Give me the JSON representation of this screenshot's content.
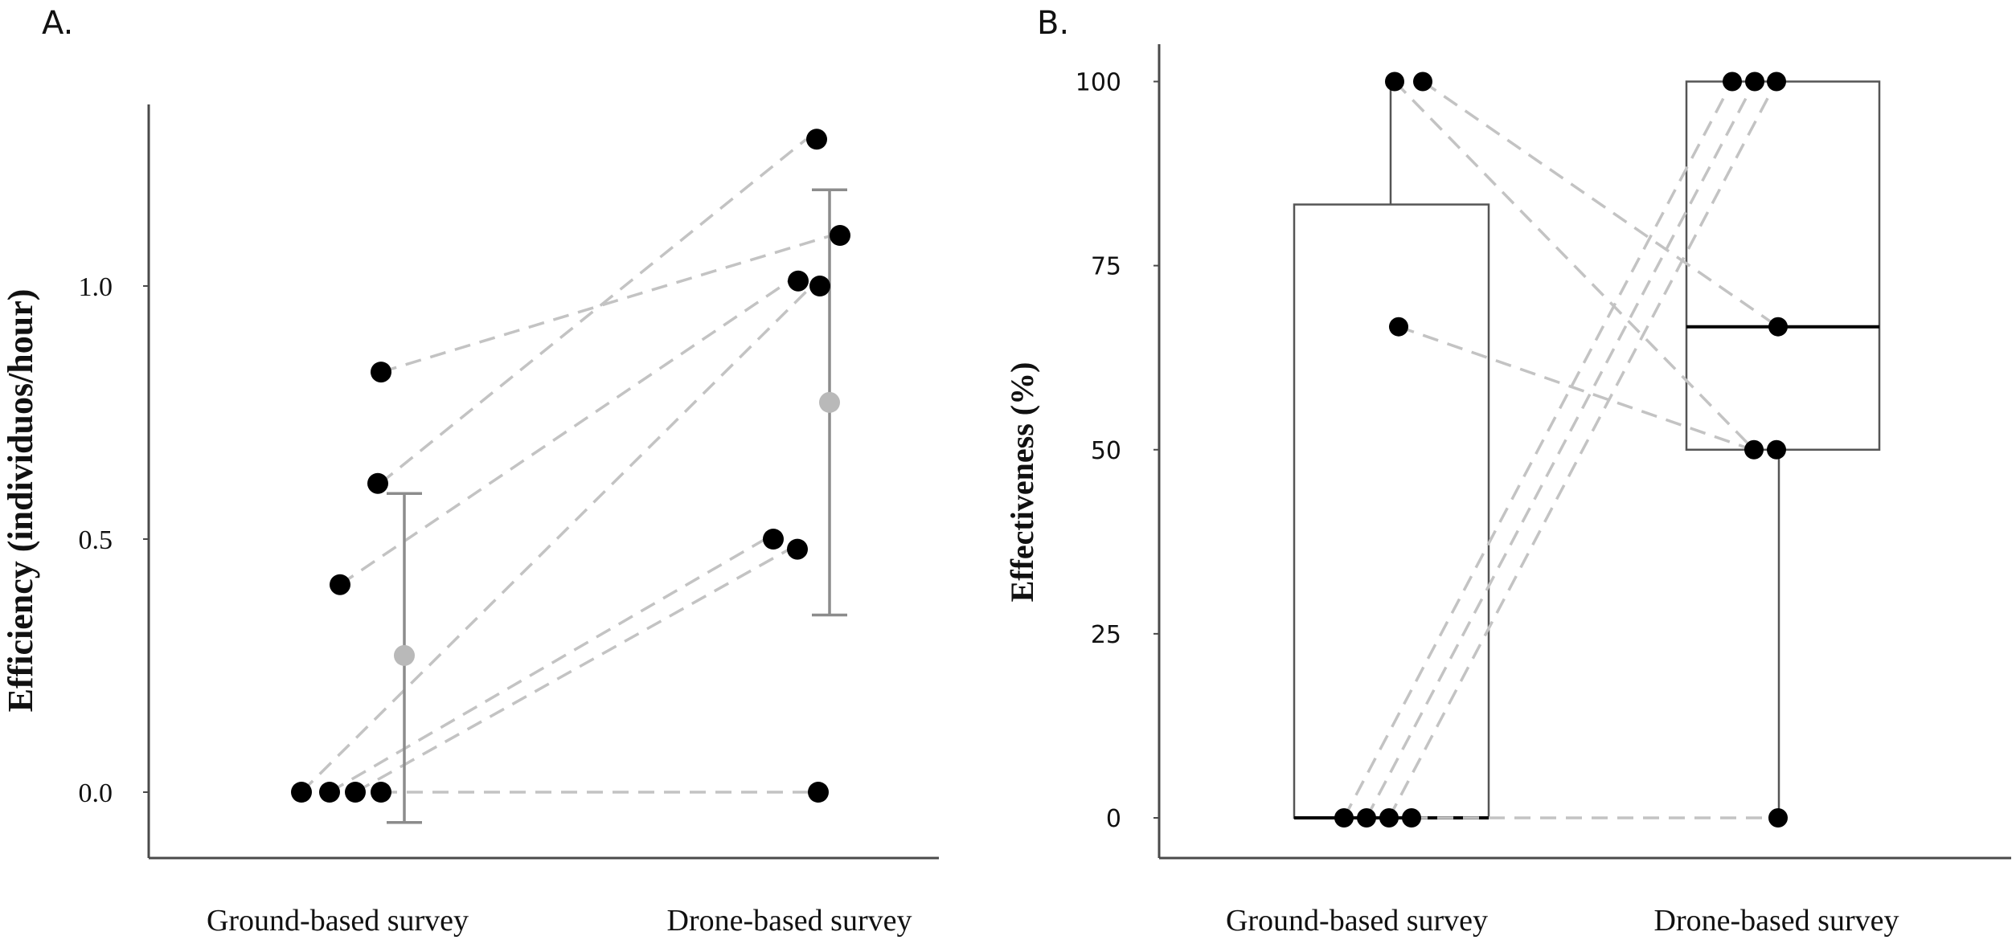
{
  "chart_data": [
    {
      "type": "scatter",
      "panel_label": "A.",
      "title": "",
      "xlabel": "",
      "ylabel": "Efficiency (individuos/hour)",
      "categories": [
        "Ground-based survey",
        "Drone-based survey"
      ],
      "ylim": [
        -0.13,
        1.38
      ],
      "yticks": [
        0.0,
        0.5,
        1.0
      ],
      "ytick_labels": [
        "0.0",
        "0.5",
        "1.0"
      ],
      "points": {
        "ground": [
          0.83,
          0.61,
          0.41,
          0,
          0,
          0,
          0
        ],
        "drone": [
          1.29,
          1.1,
          1.01,
          1.0,
          0.5,
          0.48,
          0
        ]
      },
      "pairs": [
        {
          "ground": 0.83,
          "drone": 1.1
        },
        {
          "ground": 0.61,
          "drone": 1.29
        },
        {
          "ground": 0.41,
          "drone": 1.01
        },
        {
          "ground": 0,
          "drone": 1.0
        },
        {
          "ground": 0,
          "drone": 0.5
        },
        {
          "ground": 0,
          "drone": 0.48
        },
        {
          "ground": 0,
          "drone": 0
        }
      ],
      "summary": [
        {
          "group": "Ground-based survey",
          "mean": 0.27,
          "lower": -0.06,
          "upper": 0.59
        },
        {
          "group": "Drone-based survey",
          "mean": 0.77,
          "lower": 0.35,
          "upper": 1.19
        }
      ]
    },
    {
      "type": "box",
      "panel_label": "B.",
      "title": "",
      "xlabel": "",
      "ylabel": "Effectiveness (%)",
      "categories": [
        "Ground-based survey",
        "Drone-based survey"
      ],
      "ylim": [
        -5,
        105
      ],
      "yticks": [
        0,
        25,
        50,
        75,
        100
      ],
      "ytick_labels": [
        "0",
        "25",
        "50",
        "75",
        "100"
      ],
      "boxes": [
        {
          "group": "Ground-based survey",
          "min": 0,
          "q1": 0,
          "median": 0,
          "q3": 83.3,
          "max": 100
        },
        {
          "group": "Drone-based survey",
          "min": 0,
          "q1": 50,
          "median": 66.7,
          "q3": 100,
          "max": 100
        }
      ],
      "points": {
        "ground": [
          100,
          100,
          66.7,
          0,
          0,
          0,
          0
        ],
        "drone": [
          100,
          100,
          100,
          66.7,
          50,
          50,
          0
        ]
      },
      "pairs": [
        {
          "ground": 100,
          "drone": 66.7
        },
        {
          "ground": 100,
          "drone": 50
        },
        {
          "ground": 66.7,
          "drone": 50
        },
        {
          "ground": 0,
          "drone": 100
        },
        {
          "ground": 0,
          "drone": 100
        },
        {
          "ground": 0,
          "drone": 100
        },
        {
          "ground": 0,
          "drone": 0
        }
      ]
    }
  ]
}
